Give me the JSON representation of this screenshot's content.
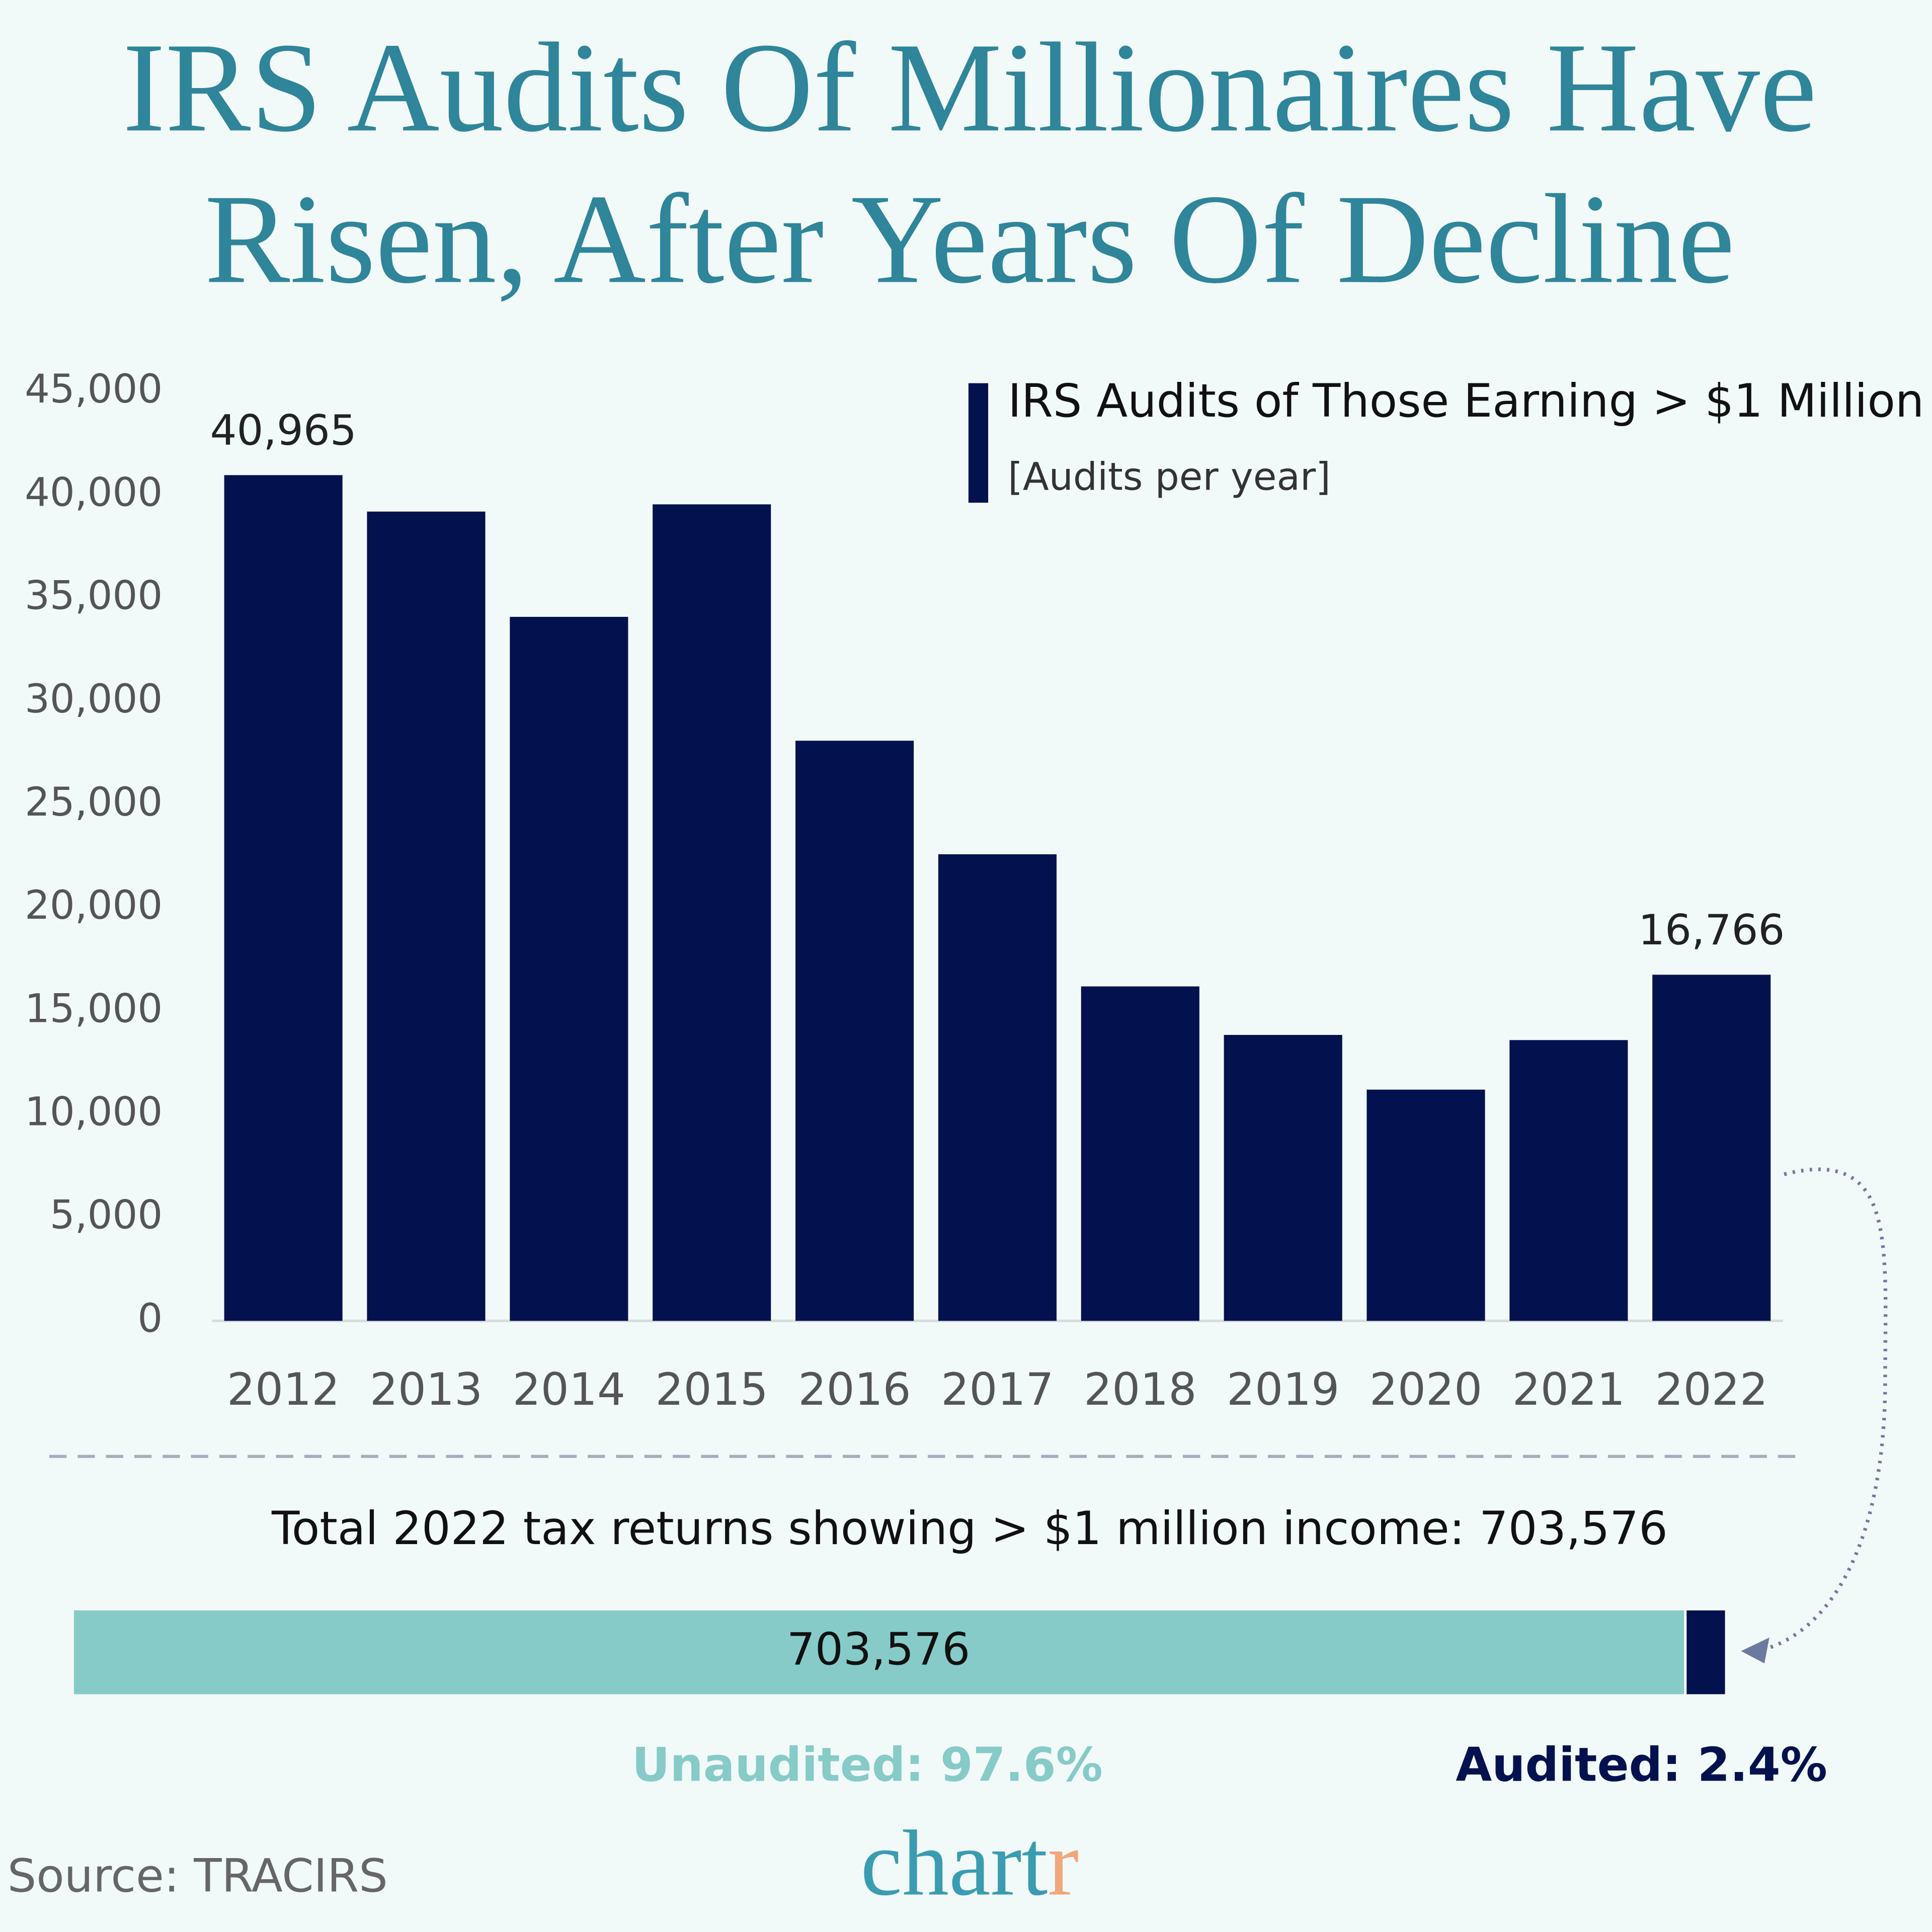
{
  "chart_data": [
    {
      "type": "bar",
      "title": [
        "IRS Audits Of Millionaires Have",
        "Risen, After Years Of Decline"
      ],
      "categories": [
        "2012",
        "2013",
        "2014",
        "2015",
        "2016",
        "2017",
        "2018",
        "2019",
        "2020",
        "2021",
        "2022"
      ],
      "series": [
        {
          "name": "IRS Audits of Those Earning > $1 Million",
          "color": "#03124e",
          "values": [
            40965,
            39200,
            34100,
            39550,
            28100,
            22600,
            16200,
            13850,
            11200,
            13600,
            16766
          ],
          "value_labels": [
            "40,965",
            null,
            null,
            null,
            null,
            null,
            null,
            null,
            null,
            null,
            "16,766"
          ]
        }
      ],
      "legend_subtitle": "[Audits per year]",
      "ylim": [
        0,
        45000
      ],
      "yticks": [
        0,
        {
          "value": 5000,
          "label": "5,000"
        },
        {
          "value": 10000,
          "label": "10,000"
        },
        {
          "value": 15000,
          "label": "15,000"
        },
        {
          "value": 20000,
          "label": "20,000"
        },
        {
          "value": 25000,
          "label": "25,000"
        },
        {
          "value": 30000,
          "label": "30,000"
        },
        {
          "value": 35000,
          "label": "35,000"
        },
        {
          "value": 40000,
          "label": "40,000"
        },
        {
          "value": 45000,
          "label": "45,000"
        }
      ],
      "grid": false,
      "legend": "top-right"
    },
    {
      "type": "stacked_hbar",
      "title": "Total 2022 tax returns showing > $1 million income: 703,576",
      "bar_label": "703,576",
      "xlim": [
        0,
        100
      ],
      "series": [
        {
          "color": "#86cbc8",
          "values": [
            97.6
          ],
          "value_labels": [
            "Unaudited: 97.6%"
          ]
        },
        {
          "color": "#03124e",
          "values": [
            2.4
          ],
          "value_labels": [
            "Audited: 2.4%"
          ]
        }
      ]
    }
  ],
  "source": "Source: TRACIRS",
  "brand": {
    "main": "chart",
    "accent": "r"
  }
}
